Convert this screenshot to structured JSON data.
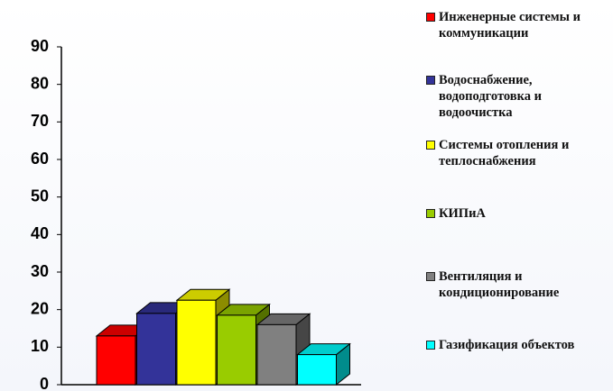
{
  "chart_data": {
    "type": "bar",
    "series": [
      {
        "name": "Инженерные системы и коммуникации",
        "color": "#ff0000",
        "values": [
          13
        ]
      },
      {
        "name": "Водоснабжение, водоподготовка и водоочистка",
        "color": "#333399",
        "values": [
          19
        ]
      },
      {
        "name": "Системы отопления и теплоснабжения",
        "color": "#ffff00",
        "values": [
          22.5
        ]
      },
      {
        "name": "КИПиА",
        "color": "#99cc00",
        "values": [
          18.5
        ]
      },
      {
        "name": "Вентиляция и кондиционирование",
        "color": "#808080",
        "values": [
          16
        ]
      },
      {
        "name": "Газификация объектов",
        "color": "#00ffff",
        "values": [
          8
        ]
      }
    ],
    "ylim": [
      0,
      90
    ],
    "yticks": [
      0,
      10,
      20,
      30,
      40,
      50,
      60,
      70,
      80,
      90
    ],
    "legend": "right"
  }
}
